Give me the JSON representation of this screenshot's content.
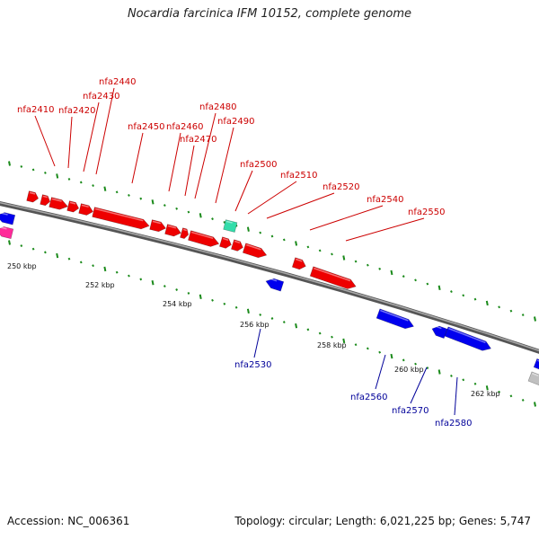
{
  "title": "Nocardia farcinica IFM 10152, complete genome",
  "accession": "Accession: NC_006361",
  "summary": "Topology: circular; Length: 6,021,225 bp; Genes: 5,747",
  "colors": {
    "forward_gene": "#ee0000",
    "reverse_gene": "#0000ee",
    "rna_gene": "#33ddaa",
    "other_gene": "#c0c0c0",
    "pink_gene": "#ff2a9a",
    "backbone": "#888888",
    "tick": "#1a8a1a",
    "forward_label": "#cc0000",
    "reverse_label": "#000099"
  },
  "tick_labels": [
    "250 kbp",
    "252 kbp",
    "254 kbp",
    "256 kbp",
    "258 kbp",
    "260 kbp",
    "262 kbp"
  ],
  "forward_labels": [
    "nfa2410",
    "nfa2420",
    "nfa2430",
    "nfa2440",
    "nfa2450",
    "nfa2460",
    "nfa2470",
    "nfa2480",
    "nfa2490",
    "nfa2500",
    "nfa2510",
    "nfa2520",
    "nfa2540",
    "nfa2550"
  ],
  "reverse_labels": [
    "nfa2530",
    "nfa2560",
    "nfa2570",
    "nfa2580"
  ]
}
